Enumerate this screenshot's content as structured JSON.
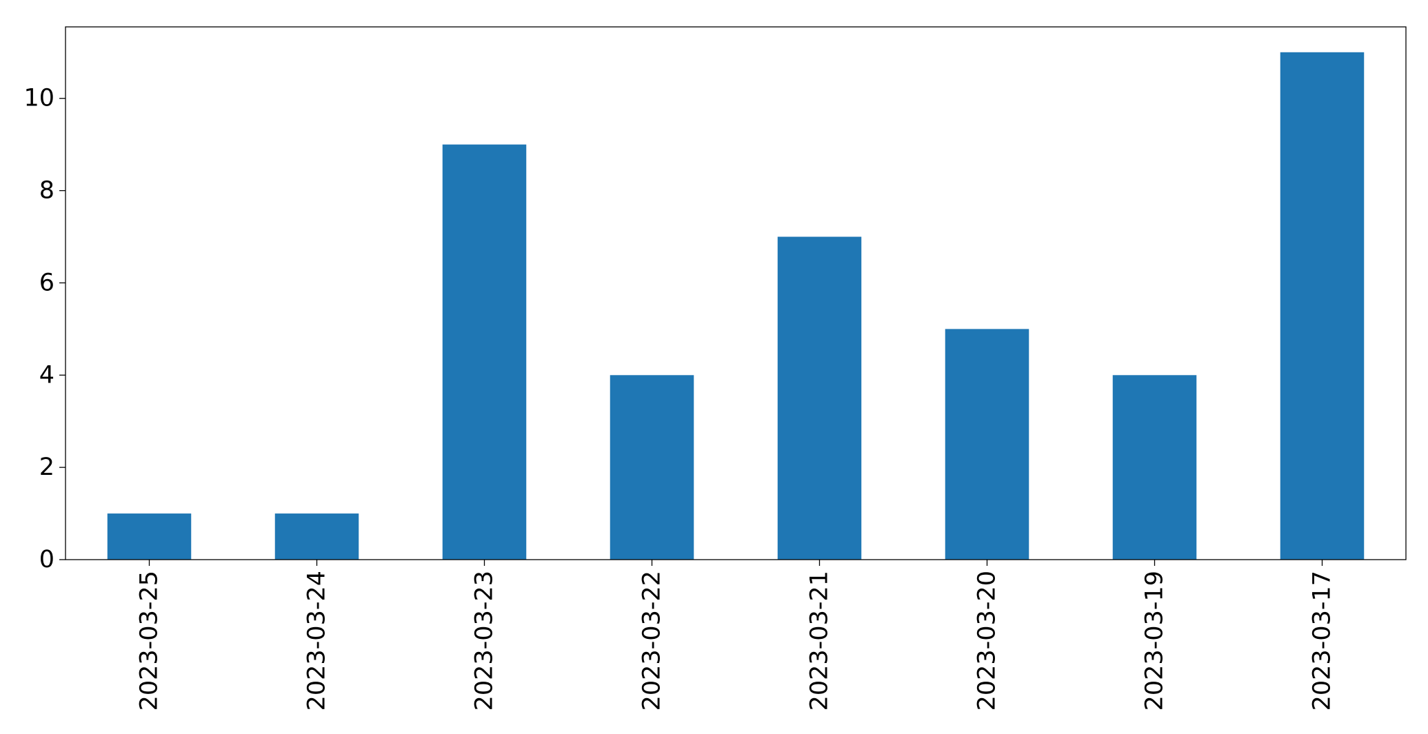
{
  "chart_data": {
    "type": "bar",
    "categories": [
      "2023-03-25",
      "2023-03-24",
      "2023-03-23",
      "2023-03-22",
      "2023-03-21",
      "2023-03-20",
      "2023-03-19",
      "2023-03-17"
    ],
    "values": [
      1,
      1,
      9,
      4,
      7,
      5,
      4,
      11
    ],
    "title": "",
    "xlabel": "",
    "ylabel": "",
    "ylim": [
      0,
      11.55
    ],
    "yticks": [
      0,
      2,
      4,
      6,
      8,
      10
    ],
    "grid": false,
    "bar_color": "#1f77b4"
  }
}
